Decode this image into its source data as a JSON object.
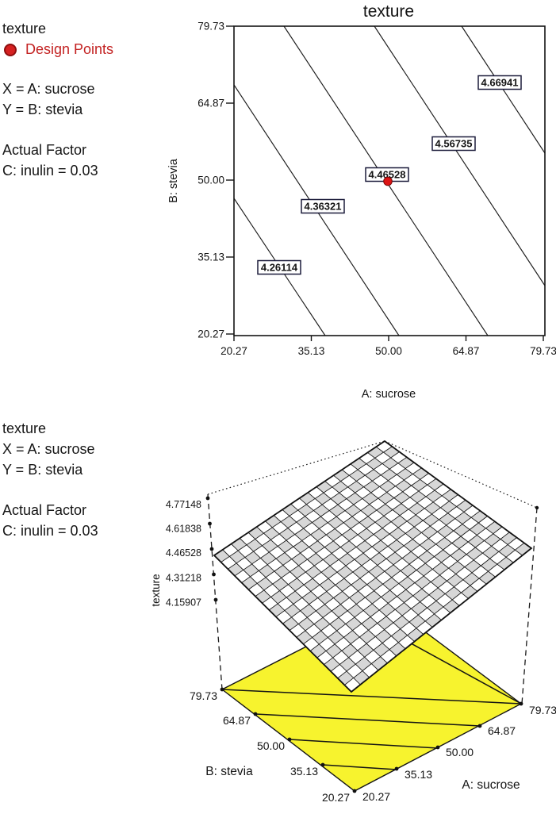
{
  "contour_plot": {
    "title": "texture",
    "legend": {
      "title": "texture",
      "design_points": "Design Points",
      "x_def": "X = A: sucrose",
      "y_def": "Y = B: stevia",
      "actual_factor": "Actual Factor",
      "factor_value": "C: inulin = 0.03"
    },
    "x_axis": {
      "label": "A: sucrose",
      "ticks": [
        "20.27",
        "35.13",
        "50.00",
        "64.87",
        "79.73"
      ]
    },
    "y_axis": {
      "label": "B: stevia",
      "ticks": [
        "79.73",
        "64.87",
        "50.00",
        "35.13",
        "20.27"
      ]
    },
    "contour_labels": [
      "4.26114",
      "4.36321",
      "4.46528",
      "4.56735",
      "4.66941"
    ],
    "design_point_color": "#d62121"
  },
  "surface_plot": {
    "legend": {
      "title": "texture",
      "x_def": "X = A: sucrose",
      "y_def": "Y = B: stevia",
      "actual_factor": "Actual Factor",
      "factor_value": "C: inulin = 0.03"
    },
    "z_axis": {
      "label": "texture",
      "ticks": [
        "4.77148",
        "4.61838",
        "4.46528",
        "4.31218",
        "4.15907"
      ]
    },
    "b_axis": {
      "label": "B: stevia",
      "ticks": [
        "79.73",
        "64.87",
        "50.00",
        "35.13",
        "20.27"
      ]
    },
    "a_axis": {
      "label": "A: sucrose",
      "ticks": [
        "20.27",
        "35.13",
        "50.00",
        "64.87",
        "79.73"
      ]
    },
    "colors": {
      "floor_yellow": "#f7f32e",
      "mesh_gray": "#d7d7d7"
    }
  },
  "chart_data": [
    {
      "type": "contour",
      "title": "texture",
      "xlabel": "A: sucrose",
      "ylabel": "B: stevia",
      "x_range": [
        20.27,
        79.73
      ],
      "y_range": [
        20.27,
        79.73
      ],
      "x_ticks": [
        20.27,
        35.13,
        50.0,
        64.87,
        79.73
      ],
      "y_ticks": [
        20.27,
        35.13,
        50.0,
        64.87,
        79.73
      ],
      "contour_levels": [
        4.26114,
        4.36321,
        4.46528,
        4.56735,
        4.66941
      ],
      "design_points": [
        {
          "x": 50.0,
          "y": 50.0,
          "value": 4.46528
        }
      ],
      "actual_factor": "C: inulin = 0.03",
      "grid": false,
      "legend_position": "top-left-outside"
    },
    {
      "type": "surface_3d",
      "title": "texture",
      "xlabel": "A: sucrose",
      "ylabel": "B: stevia",
      "zlabel": "texture",
      "x_ticks": [
        20.27,
        35.13,
        50.0,
        64.87,
        79.73
      ],
      "y_ticks": [
        20.27,
        35.13,
        50.0,
        64.87,
        79.73
      ],
      "z_ticks": [
        4.15907,
        4.31218,
        4.46528,
        4.61838,
        4.77148
      ],
      "z_range": [
        4.15907,
        4.77148
      ],
      "surface": "plane rising from (A=20.27,B=20.27,z=4.15907) to (A=79.73,B=79.73,z=4.77148), 20x20 checkerboard mesh",
      "floor_contour_levels": [
        4.26114,
        4.36321,
        4.46528,
        4.56735,
        4.66941
      ],
      "actual_factor": "C: inulin = 0.03"
    }
  ]
}
